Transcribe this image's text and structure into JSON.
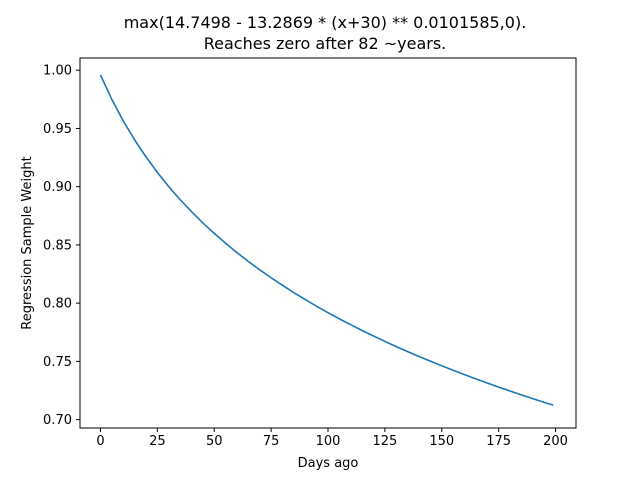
{
  "chart_data": {
    "type": "line",
    "title": "max(14.7498 - 13.2869 * (x+30) ** 0.0101585,0).",
    "subtitle": "Reaches zero after 82 ~years.",
    "xlabel": "Days ago",
    "ylabel": "Regression Sample Weight",
    "xlim": [
      -9,
      209
    ],
    "ylim": [
      0.6928,
      1.0105
    ],
    "xticks": [
      0,
      25,
      50,
      75,
      100,
      125,
      150,
      175,
      200
    ],
    "yticks": [
      0.7,
      0.75,
      0.8,
      0.85,
      0.9,
      0.95,
      1.0
    ],
    "ytick_labels": [
      "0.70",
      "0.75",
      "0.80",
      "0.85",
      "0.90",
      "0.95",
      "1.00"
    ],
    "grid": false,
    "series": [
      {
        "color": "#1f77b4",
        "x": [
          0,
          5,
          10,
          15,
          20,
          25,
          30,
          35,
          40,
          45,
          50,
          55,
          60,
          65,
          70,
          75,
          80,
          85,
          90,
          95,
          100,
          105,
          110,
          115,
          120,
          125,
          130,
          135,
          140,
          145,
          150,
          155,
          160,
          165,
          170,
          175,
          180,
          185,
          190,
          195,
          199
        ],
        "y": [
          0.9959,
          0.9749,
          0.9565,
          0.9402,
          0.9256,
          0.9123,
          0.9001,
          0.8889,
          0.8786,
          0.8689,
          0.8599,
          0.8514,
          0.8434,
          0.8358,
          0.8286,
          0.8218,
          0.8153,
          0.809,
          0.8031,
          0.7973,
          0.7918,
          0.7865,
          0.7815,
          0.7765,
          0.7718,
          0.7672,
          0.7627,
          0.7584,
          0.7542,
          0.7502,
          0.7462,
          0.7424,
          0.7386,
          0.735,
          0.7314,
          0.7279,
          0.7246,
          0.7212,
          0.718,
          0.7148,
          0.7124
        ]
      }
    ]
  }
}
